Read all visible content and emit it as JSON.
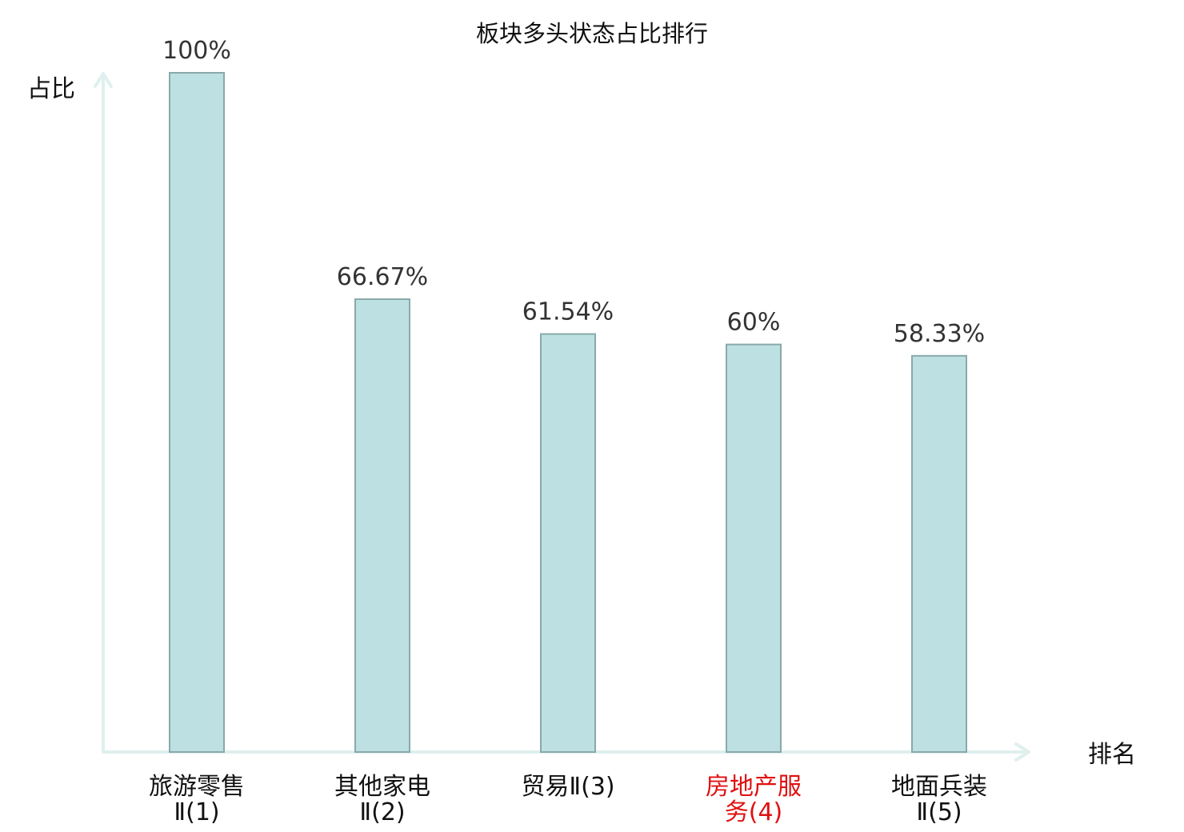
{
  "chart_data": {
    "type": "bar",
    "title": "板块多头状态占比排行",
    "ylabel": "占比",
    "xlabel": "排名",
    "ylim": [
      0,
      100
    ],
    "grid": false,
    "categories": [
      {
        "lines": [
          "旅游零售",
          "Ⅱ(1)"
        ],
        "highlight": false
      },
      {
        "lines": [
          "其他家电",
          "Ⅱ(2)"
        ],
        "highlight": false
      },
      {
        "lines": [
          "贸易Ⅱ(3)"
        ],
        "highlight": false
      },
      {
        "lines": [
          "房地产服",
          "务(4)"
        ],
        "highlight": true
      },
      {
        "lines": [
          "地面兵装",
          "Ⅱ(5)"
        ],
        "highlight": false
      }
    ],
    "values": [
      100,
      66.67,
      61.54,
      60,
      58.33
    ],
    "value_labels": [
      "100%",
      "66.67%",
      "61.54%",
      "60%",
      "58.33%"
    ],
    "colors": {
      "bar_fill": "#bde1e2",
      "bar_stroke": "#8aa8a9",
      "axis": "#dff0ee",
      "label": "#111111",
      "highlight": "#e01010"
    }
  }
}
